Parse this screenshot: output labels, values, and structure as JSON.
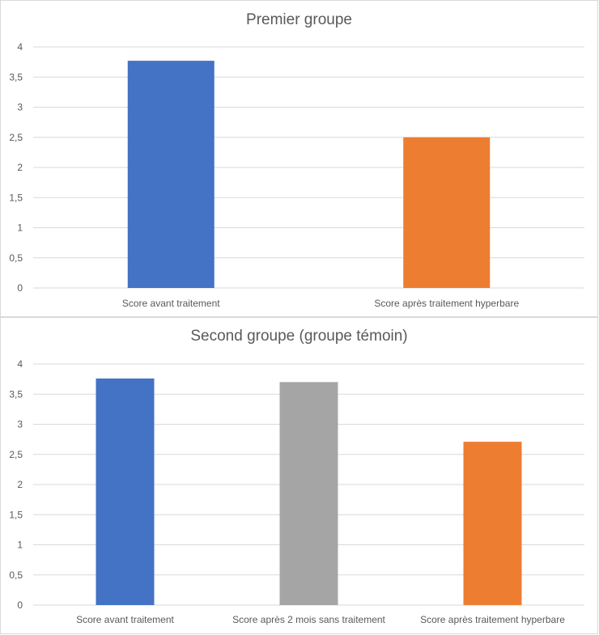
{
  "chart_data": [
    {
      "type": "bar",
      "title": "Premier groupe",
      "categories": [
        "Score avant traitement",
        "Score après traitement hyperbare"
      ],
      "values": [
        3.77,
        2.5
      ],
      "colors": [
        "#4472C4",
        "#ED7D31"
      ],
      "ylim": [
        0,
        4
      ],
      "yticks": [
        "0",
        "0,5",
        "1",
        "1,5",
        "2",
        "2,5",
        "3",
        "3,5",
        "4"
      ],
      "grid": true
    },
    {
      "type": "bar",
      "title": "Second groupe (groupe témoin)",
      "categories": [
        "Score avant traitement",
        "Score après 2 mois sans traitement",
        "Score après traitement hyperbare"
      ],
      "values": [
        3.76,
        3.7,
        2.71
      ],
      "colors": [
        "#4472C4",
        "#A5A5A5",
        "#ED7D31"
      ],
      "ylim": [
        0,
        4
      ],
      "yticks": [
        "0",
        "0,5",
        "1",
        "1,5",
        "2",
        "2,5",
        "3",
        "3,5",
        "4"
      ],
      "grid": true
    }
  ]
}
